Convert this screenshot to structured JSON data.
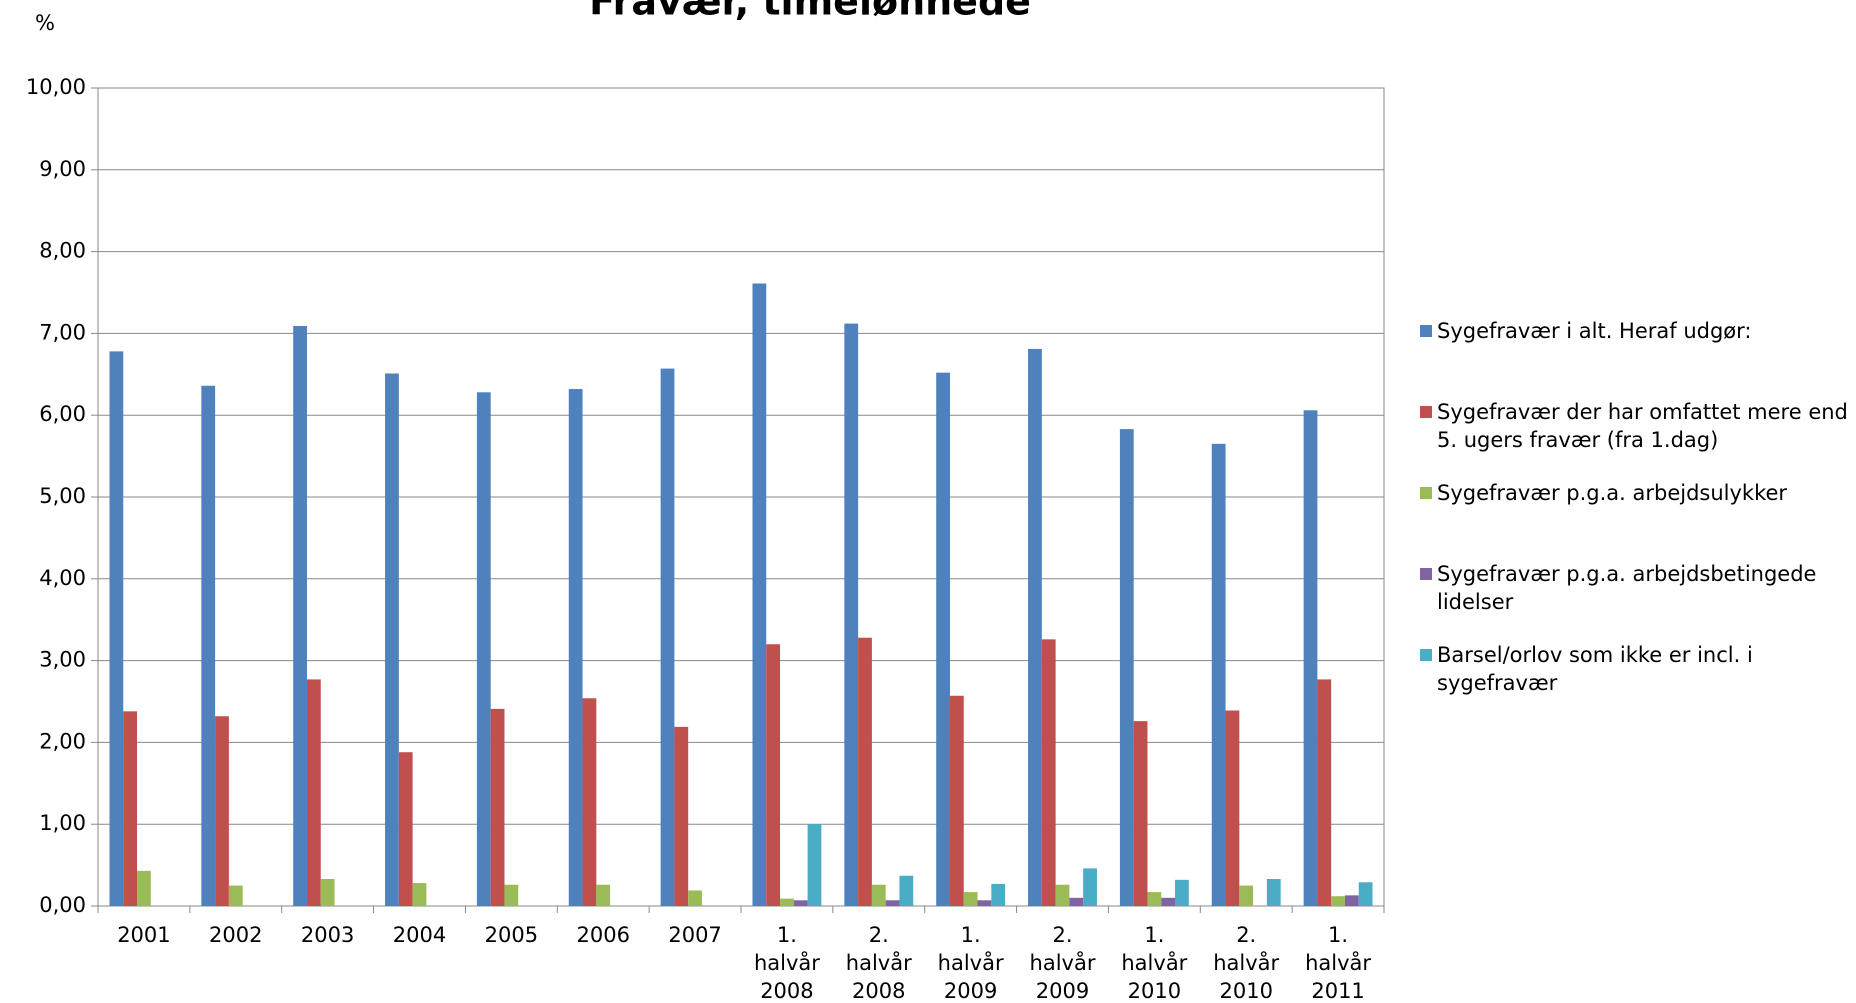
{
  "chart_data": {
    "type": "bar",
    "title": "Fravær, timelønnede",
    "y_label": "%",
    "categories": [
      "2001",
      "2002",
      "2003",
      "2004",
      "2005",
      "2006",
      "2007",
      "1. halvår 2008",
      "2. halvår 2008",
      "1. halvår 2009",
      "2. halvår 2009",
      "1. halvår 2010",
      "2. halvår 2010",
      "1. halvår 2011"
    ],
    "series": [
      {
        "name": "Sygefravær i alt. Heraf udgør:",
        "color": "#4f81bd",
        "values": [
          6.78,
          6.36,
          7.09,
          6.51,
          6.28,
          6.32,
          6.57,
          7.61,
          7.12,
          6.52,
          6.81,
          5.83,
          5.65,
          6.06
        ]
      },
      {
        "name": "Sygefravær der har omfattet mere end 5. ugers fravær (fra 1.dag)",
        "color": "#c0504d",
        "values": [
          2.38,
          2.32,
          2.77,
          1.88,
          2.41,
          2.54,
          2.19,
          3.2,
          3.28,
          2.57,
          3.26,
          2.26,
          2.39,
          2.77
        ]
      },
      {
        "name": "Sygefravær p.g.a. arbejdsulykker",
        "color": "#9bbb59",
        "values": [
          0.43,
          0.25,
          0.33,
          0.28,
          0.26,
          0.26,
          0.19,
          0.09,
          0.26,
          0.17,
          0.26,
          0.17,
          0.25,
          0.12
        ]
      },
      {
        "name": "Sygefravær p.g.a. arbejdsbetingede lidelser",
        "color": "#8064a2",
        "values": [
          null,
          null,
          null,
          null,
          null,
          null,
          null,
          0.07,
          0.07,
          0.07,
          0.1,
          0.1,
          null,
          0.13
        ]
      },
      {
        "name": "Barsel/orlov som ikke er incl. i sygefravær",
        "color": "#4bacc6",
        "values": [
          null,
          null,
          null,
          null,
          null,
          null,
          null,
          1.0,
          0.37,
          0.27,
          0.46,
          0.32,
          0.33,
          0.29
        ]
      }
    ],
    "ylim": [
      0,
      10
    ],
    "yticks": [
      {
        "value": 0,
        "label": "0,00"
      },
      {
        "value": 1,
        "label": "1,00"
      },
      {
        "value": 2,
        "label": "2,00"
      },
      {
        "value": 3,
        "label": "3,00"
      },
      {
        "value": 4,
        "label": "4,00"
      },
      {
        "value": 5,
        "label": "5,00"
      },
      {
        "value": 6,
        "label": "6,00"
      },
      {
        "value": 7,
        "label": "7,00"
      },
      {
        "value": 8,
        "label": "8,00"
      },
      {
        "value": 9,
        "label": "9,00"
      },
      {
        "value": 10,
        "label": "10,00"
      }
    ],
    "grid": true,
    "legend": "right"
  }
}
